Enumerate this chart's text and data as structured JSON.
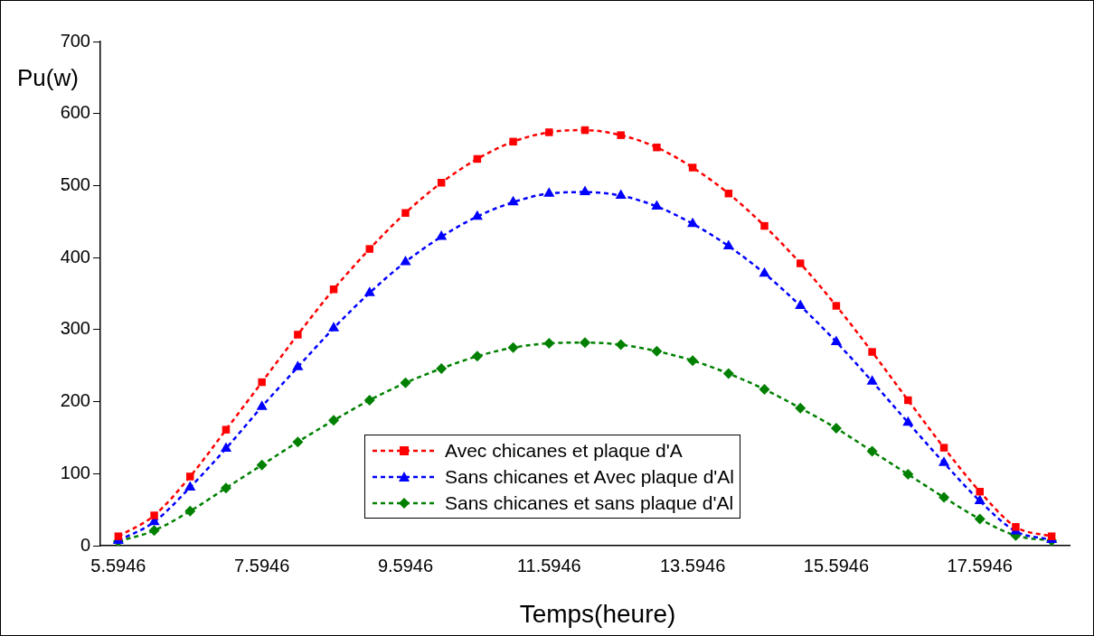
{
  "chart_data": {
    "type": "line",
    "xlabel": "Temps(heure)",
    "ylabel": "Pu(w)",
    "categories": [
      "5.5946",
      null,
      null,
      null,
      "7.5946",
      null,
      null,
      null,
      "9.5946",
      null,
      null,
      null,
      "11.5946",
      null,
      null,
      null,
      "13.5946",
      null,
      null,
      null,
      "15.5946",
      null,
      null,
      null,
      "17.5946",
      null,
      null
    ],
    "ylim": [
      0,
      700
    ],
    "yticks": [
      0,
      100,
      200,
      300,
      400,
      500,
      600,
      700
    ],
    "grid": false,
    "legend": "bottom",
    "line_style": "dashed",
    "series": [
      {
        "name": "Avec chicanes et plaque d'A",
        "color": "#ff0000",
        "marker": "square",
        "values": [
          13,
          42,
          96,
          161,
          227,
          293,
          356,
          412,
          462,
          504,
          537,
          561,
          574,
          577,
          570,
          553,
          525,
          489,
          444,
          392,
          333,
          269,
          202,
          136,
          75,
          26,
          13
        ]
      },
      {
        "name": "Sans chicanes et Avec plaque d'Al",
        "color": "#0000ff",
        "marker": "triangle",
        "values": [
          7,
          33,
          81,
          135,
          193,
          248,
          302,
          351,
          394,
          429,
          457,
          477,
          489,
          491,
          486,
          471,
          447,
          416,
          378,
          333,
          283,
          228,
          171,
          115,
          62,
          20,
          8
        ]
      },
      {
        "name": "Sans chicanes et sans plaque d'Al",
        "color": "#008000",
        "marker": "diamond",
        "values": [
          6,
          21,
          48,
          80,
          112,
          144,
          174,
          202,
          226,
          246,
          263,
          275,
          281,
          282,
          279,
          270,
          257,
          239,
          217,
          191,
          163,
          131,
          99,
          67,
          37,
          14,
          7
        ]
      }
    ]
  }
}
